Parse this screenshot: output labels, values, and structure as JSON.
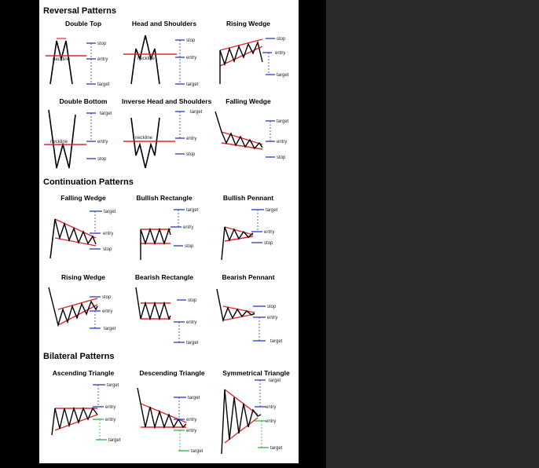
{
  "sections": [
    {
      "title": "Reversal Patterns",
      "patterns": [
        {
          "name": "Double Top",
          "labels": [
            "stop",
            "neckline",
            "entry",
            "target"
          ]
        },
        {
          "name": "Head and Shoulders",
          "labels": [
            "stop",
            "neckline",
            "entry",
            "target"
          ]
        },
        {
          "name": "Rising Wedge",
          "labels": [
            "stop",
            "entry",
            "target"
          ]
        },
        {
          "name": "Double Bottom",
          "labels": [
            "target",
            "neckline",
            "entry",
            "stop"
          ]
        },
        {
          "name": "Inverse Head and Shoulders",
          "labels": [
            "target",
            "neckline",
            "entry",
            "stop"
          ]
        },
        {
          "name": "Falling Wedge",
          "labels": [
            "target",
            "entry",
            "stop"
          ]
        }
      ]
    },
    {
      "title": "Continuation Patterns",
      "patterns": [
        {
          "name": "Falling Wedge",
          "labels": [
            "target",
            "entry",
            "stop"
          ]
        },
        {
          "name": "Bullish Rectangle",
          "labels": [
            "target",
            "entry",
            "stop"
          ]
        },
        {
          "name": "Bullish Pennant",
          "labels": [
            "target",
            "entry",
            "stop"
          ]
        },
        {
          "name": "Rising Wedge",
          "labels": [
            "stop",
            "entry",
            "target"
          ]
        },
        {
          "name": "Bearish Rectangle",
          "labels": [
            "stop",
            "entry",
            "target"
          ]
        },
        {
          "name": "Bearish Pennant",
          "labels": [
            "stop",
            "entry",
            "target"
          ]
        }
      ]
    },
    {
      "title": "Bilateral Patterns",
      "patterns": [
        {
          "name": "Ascending Triangle",
          "labels": [
            "target",
            "entry",
            "entry",
            "target"
          ]
        },
        {
          "name": "Descending Triangle",
          "labels": [
            "target",
            "entry",
            "entry",
            "target"
          ]
        },
        {
          "name": "Symmetrical Triangle",
          "labels": [
            "target",
            "entry",
            "entry",
            "target"
          ]
        }
      ]
    }
  ],
  "colors": {
    "price": "#000000",
    "pattern_line": "#e0262b",
    "level_line": "#2b3bb8",
    "target_line_bilateral": "#2fb33a"
  }
}
